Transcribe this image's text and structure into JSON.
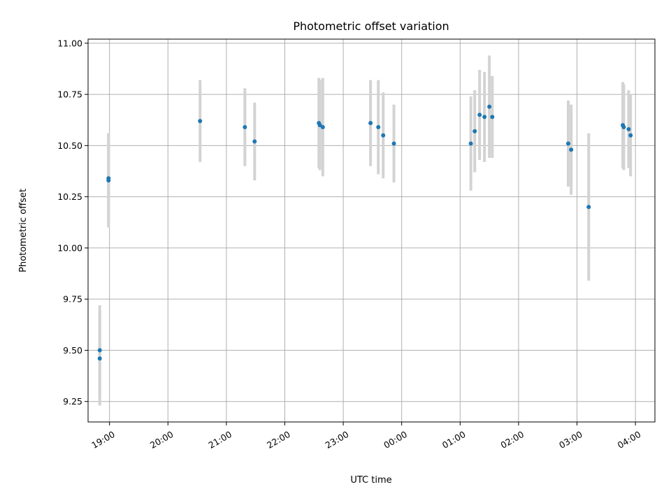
{
  "chart_data": {
    "type": "scatter",
    "title": "Photometric offset variation",
    "xlabel": "UTC time",
    "ylabel": "Photometric offset",
    "x_axis_type": "time",
    "xlim": [
      "2000-01-01T18:38",
      "2000-01-02T04:20"
    ],
    "ylim": [
      9.15,
      11.02
    ],
    "x_ticks": [
      {
        "t": "2000-01-01T19:00",
        "label": "19:00"
      },
      {
        "t": "2000-01-01T20:00",
        "label": "20:00"
      },
      {
        "t": "2000-01-01T21:00",
        "label": "21:00"
      },
      {
        "t": "2000-01-01T22:00",
        "label": "22:00"
      },
      {
        "t": "2000-01-01T23:00",
        "label": "23:00"
      },
      {
        "t": "2000-01-02T00:00",
        "label": "00:00"
      },
      {
        "t": "2000-01-02T01:00",
        "label": "01:00"
      },
      {
        "t": "2000-01-02T02:00",
        "label": "02:00"
      },
      {
        "t": "2000-01-02T03:00",
        "label": "03:00"
      },
      {
        "t": "2000-01-02T04:00",
        "label": "04:00"
      }
    ],
    "y_ticks": [
      {
        "v": 9.25,
        "label": "9.25"
      },
      {
        "v": 9.5,
        "label": "9.50"
      },
      {
        "v": 9.75,
        "label": "9.75"
      },
      {
        "v": 10.0,
        "label": "10.00"
      },
      {
        "v": 10.25,
        "label": "10.25"
      },
      {
        "v": 10.5,
        "label": "10.50"
      },
      {
        "v": 10.75,
        "label": "10.75"
      },
      {
        "v": 11.0,
        "label": "11.00"
      }
    ],
    "grid": true,
    "marker_color": "#1f77b4",
    "errorbar_color": "#d3d3d3",
    "points": [
      {
        "t": "2000-01-01T18:50",
        "y": 9.5,
        "err": 0.22
      },
      {
        "t": "2000-01-01T18:50",
        "y": 9.46,
        "err": 0.23
      },
      {
        "t": "2000-01-01T18:59",
        "y": 10.33,
        "err": 0.23
      },
      {
        "t": "2000-01-01T18:59",
        "y": 10.34,
        "err": 0.22
      },
      {
        "t": "2000-01-01T20:33",
        "y": 10.62,
        "err": 0.2
      },
      {
        "t": "2000-01-01T21:19",
        "y": 10.59,
        "err": 0.19
      },
      {
        "t": "2000-01-01T21:29",
        "y": 10.52,
        "err": 0.19
      },
      {
        "t": "2000-01-01T22:35",
        "y": 10.61,
        "err": 0.22
      },
      {
        "t": "2000-01-01T22:36",
        "y": 10.6,
        "err": 0.22
      },
      {
        "t": "2000-01-01T22:39",
        "y": 10.59,
        "err": 0.24
      },
      {
        "t": "2000-01-01T23:28",
        "y": 10.61,
        "err": 0.21
      },
      {
        "t": "2000-01-01T23:36",
        "y": 10.59,
        "err": 0.23
      },
      {
        "t": "2000-01-01T23:41",
        "y": 10.55,
        "err": 0.21
      },
      {
        "t": "2000-01-01T23:52",
        "y": 10.51,
        "err": 0.19
      },
      {
        "t": "2000-01-02T01:11",
        "y": 10.51,
        "err": 0.23
      },
      {
        "t": "2000-01-02T01:15",
        "y": 10.57,
        "err": 0.2
      },
      {
        "t": "2000-01-02T01:20",
        "y": 10.65,
        "err": 0.22
      },
      {
        "t": "2000-01-02T01:25",
        "y": 10.64,
        "err": 0.22
      },
      {
        "t": "2000-01-02T01:30",
        "y": 10.69,
        "err": 0.25
      },
      {
        "t": "2000-01-02T01:33",
        "y": 10.64,
        "err": 0.2
      },
      {
        "t": "2000-01-02T02:51",
        "y": 10.51,
        "err": 0.21
      },
      {
        "t": "2000-01-02T02:54",
        "y": 10.48,
        "err": 0.22
      },
      {
        "t": "2000-01-02T03:12",
        "y": 10.2,
        "err": 0.36
      },
      {
        "t": "2000-01-02T03:47",
        "y": 10.6,
        "err": 0.21
      },
      {
        "t": "2000-01-02T03:48",
        "y": 10.59,
        "err": 0.21
      },
      {
        "t": "2000-01-02T03:53",
        "y": 10.58,
        "err": 0.19
      },
      {
        "t": "2000-01-02T03:55",
        "y": 10.55,
        "err": 0.2
      }
    ]
  }
}
